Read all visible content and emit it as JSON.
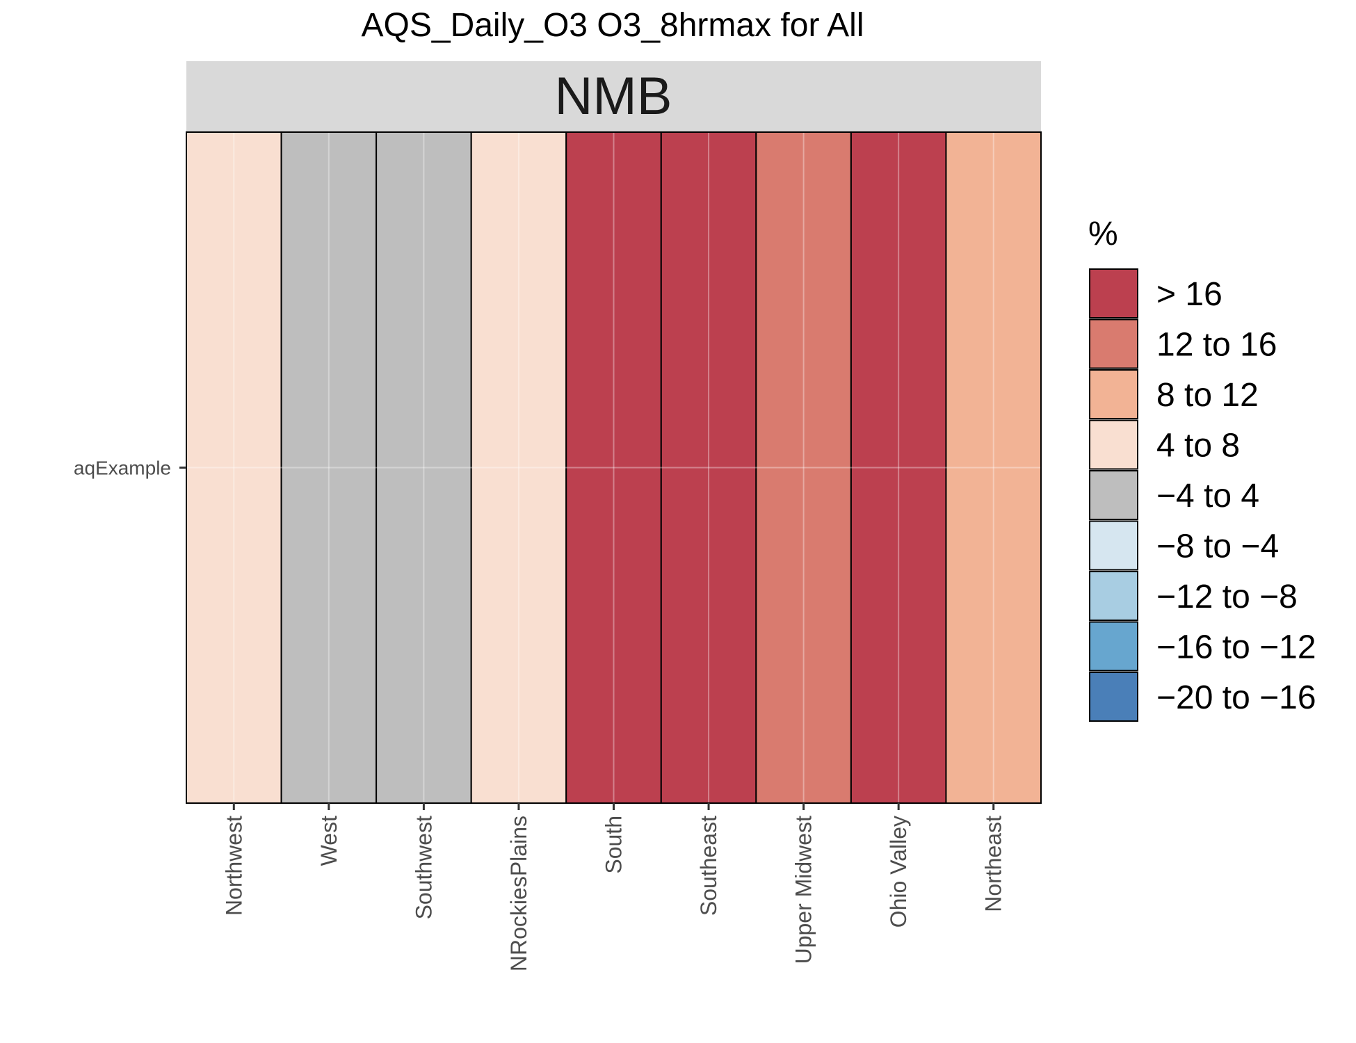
{
  "chart_data": {
    "type": "heatmap",
    "title": "AQS_Daily_O3 O3_8hrmax for All",
    "facet": "NMB",
    "y_categories": [
      "aqExample"
    ],
    "categories": [
      "Northwest",
      "West",
      "Southwest",
      "NRockiesPlains",
      "South",
      "Southeast",
      "Upper Midwest",
      "Ohio Valley",
      "Northeast"
    ],
    "values_bin": [
      "4 to 8",
      "−4 to 4",
      "−4 to 4",
      "4 to 8",
      "> 16",
      "> 16",
      "12 to 16",
      "> 16",
      "8 to 12"
    ],
    "legend": {
      "title": "%",
      "entries": [
        {
          "label": "> 16",
          "color": "#bc404f"
        },
        {
          "label": "12 to 16",
          "color": "#d97b6f"
        },
        {
          "label": "8 to 12",
          "color": "#f2b395"
        },
        {
          "label": "4 to 8",
          "color": "#f9dfd1"
        },
        {
          "label": "−4 to 4",
          "color": "#bebebe"
        },
        {
          "label": "−8 to −4",
          "color": "#d6e6f0"
        },
        {
          "label": "−12 to −8",
          "color": "#a8cde2"
        },
        {
          "label": "−16 to −12",
          "color": "#67a6cf"
        },
        {
          "label": "−20 to −16",
          "color": "#4a7fb8"
        }
      ]
    },
    "colors": {
      "strip_bg": "#d9d9d9",
      "panel_border": "#000000"
    }
  }
}
